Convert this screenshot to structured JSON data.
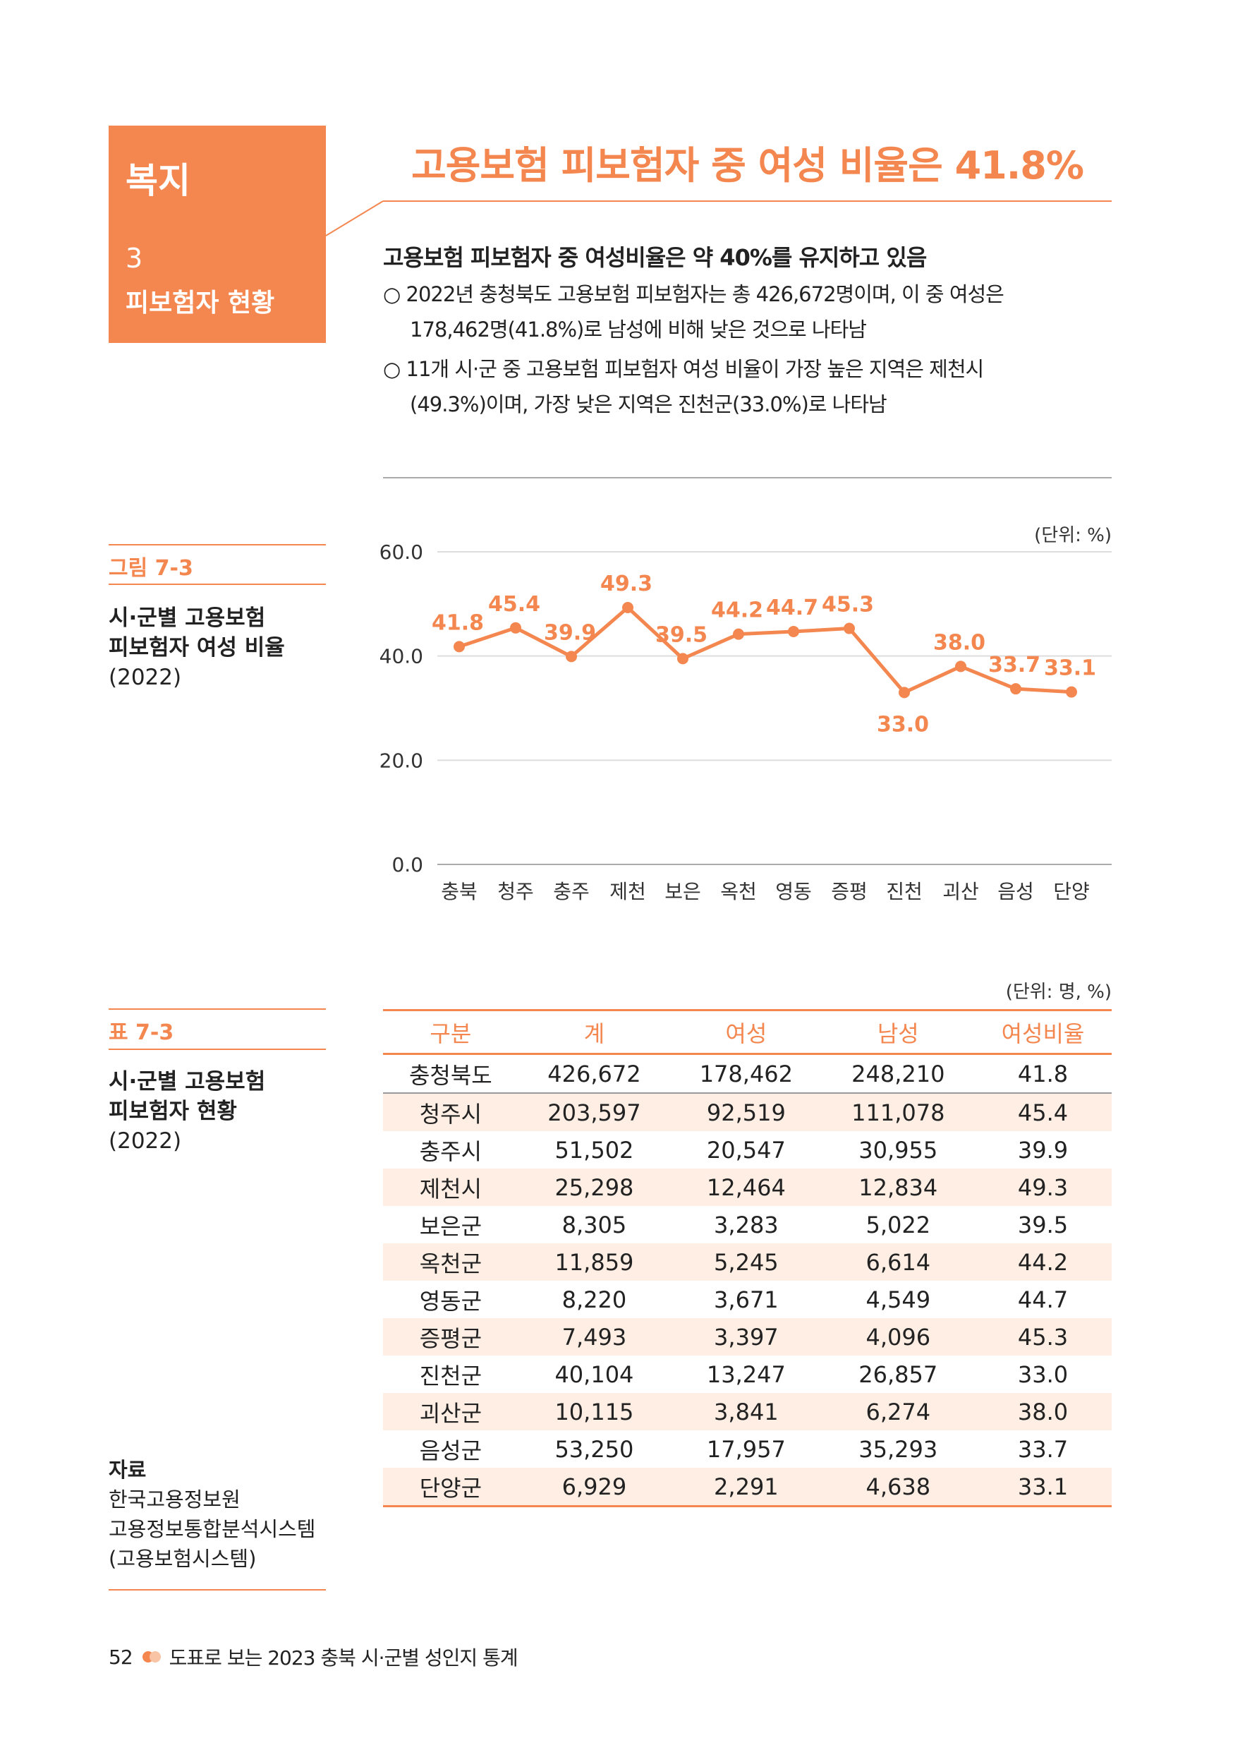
{
  "section": {
    "category": "복지",
    "number": "3",
    "name": "피보험자 현황"
  },
  "title": "고용보험 피보험자 중 여성 비율은 41.8%",
  "summary": {
    "subtitle": "고용보험 피보험자 중 여성비율은 약 40%를 유지하고 있음",
    "bullets": [
      {
        "line1": "○ 2022년 충청북도 고용보험 피보험자는 총 426,672명이며, 이 중 여성은",
        "line2": "178,462명(41.8%)로 남성에 비해 낮은 것으로 나타남"
      },
      {
        "line1": "○ 11개 시·군 중 고용보험 피보험자 여성 비율이 가장 높은 지역은 제천시",
        "line2": "(49.3%)이며, 가장 낮은 지역은 진천군(33.0%)로 나타남"
      }
    ]
  },
  "figure": {
    "label": "그림 7-3",
    "caption_line1": "시·군별 고용보험",
    "caption_line2": "피보험자 여성 비율",
    "year": "(2022)",
    "unit": "(단위: %)"
  },
  "chart_data": {
    "type": "line",
    "categories": [
      "충북",
      "청주",
      "충주",
      "제천",
      "보은",
      "옥천",
      "영동",
      "증평",
      "진천",
      "괴산",
      "음성",
      "단양"
    ],
    "values": [
      41.8,
      45.4,
      39.9,
      49.3,
      39.5,
      44.2,
      44.7,
      45.3,
      33.0,
      38.0,
      33.7,
      33.1
    ],
    "value_labels": [
      "41.8",
      "45.4",
      "39.9",
      "49.3",
      "39.5",
      "44.2",
      "44.7",
      "45.3",
      "33.0",
      "38.0",
      "33.7",
      "33.1"
    ],
    "yticks": [
      "0.0",
      "20.0",
      "40.0",
      "60.0"
    ],
    "ylim": [
      0,
      60
    ],
    "grid": true,
    "color": "#F4874F"
  },
  "table": {
    "label": "표 7-3",
    "caption_line1": "시·군별 고용보험",
    "caption_line2": "피보험자 현황",
    "year": "(2022)",
    "unit": "(단위: 명, %)",
    "headers": [
      "구분",
      "계",
      "여성",
      "남성",
      "여성비율"
    ],
    "rows": [
      [
        "충청북도",
        "426,672",
        "178,462",
        "248,210",
        "41.8"
      ],
      [
        "청주시",
        "203,597",
        "92,519",
        "111,078",
        "45.4"
      ],
      [
        "충주시",
        "51,502",
        "20,547",
        "30,955",
        "39.9"
      ],
      [
        "제천시",
        "25,298",
        "12,464",
        "12,834",
        "49.3"
      ],
      [
        "보은군",
        "8,305",
        "3,283",
        "5,022",
        "39.5"
      ],
      [
        "옥천군",
        "11,859",
        "5,245",
        "6,614",
        "44.2"
      ],
      [
        "영동군",
        "8,220",
        "3,671",
        "4,549",
        "44.7"
      ],
      [
        "증평군",
        "7,493",
        "3,397",
        "4,096",
        "45.3"
      ],
      [
        "진천군",
        "40,104",
        "13,247",
        "26,857",
        "33.0"
      ],
      [
        "괴산군",
        "10,115",
        "3,841",
        "6,274",
        "38.0"
      ],
      [
        "음성군",
        "53,250",
        "17,957",
        "35,293",
        "33.7"
      ],
      [
        "단양군",
        "6,929",
        "2,291",
        "4,638",
        "33.1"
      ]
    ]
  },
  "source": {
    "label": "자료",
    "lines": [
      "한국고용정보원",
      "고용정보통합분석시스템",
      "(고용보험시스템)"
    ]
  },
  "footer": {
    "page": "52",
    "title": "도표로 보는 2023 충북 시·군별 성인지 통계"
  },
  "colors": {
    "accent": "#F4874F",
    "row_tint": "#FEEEE4"
  }
}
